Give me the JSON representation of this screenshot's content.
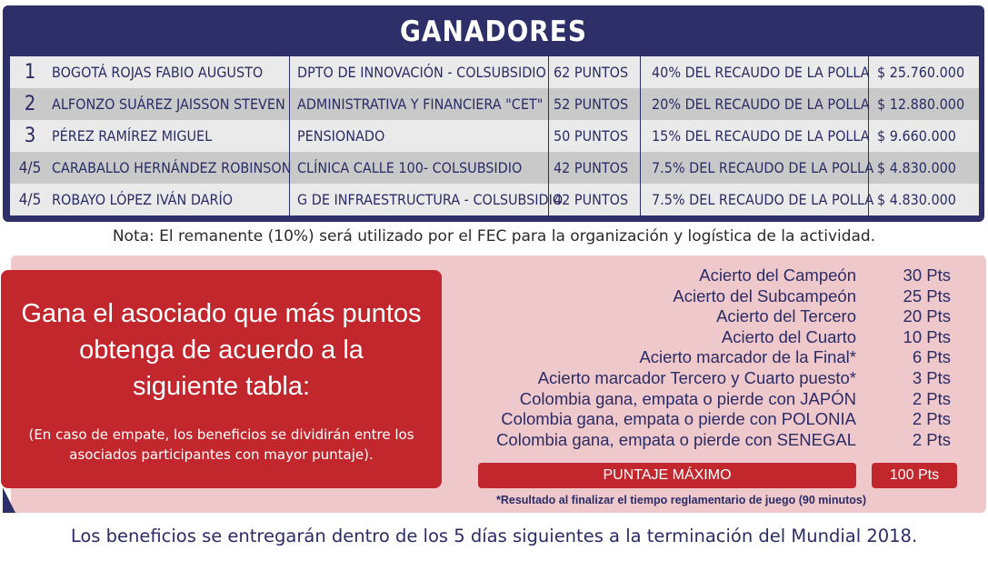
{
  "winners": {
    "title": "GANADORES",
    "rows": [
      {
        "position": "1",
        "name": "BOGOTÁ ROJAS FABIO AUGUSTO",
        "department": "DPTO DE INNOVACIÓN - COLSUBSIDIO",
        "points": "62 PUNTOS",
        "share": "40% DEL RECAUDO DE LA POLLA",
        "amount": "$ 25.760.000"
      },
      {
        "position": "2",
        "name": "ALFONZO SUÁREZ JAISSON STEVEN",
        "department": "ADMINISTRATIVA Y FINANCIERA \"CET\"",
        "points": "52 PUNTOS",
        "share": "20% DEL RECAUDO DE LA POLLA",
        "amount": "$ 12.880.000"
      },
      {
        "position": "3",
        "name": "PÉREZ RAMÍREZ MIGUEL",
        "department": "PENSIONADO",
        "points": "50 PUNTOS",
        "share": "15% DEL RECAUDO DE LA POLLA",
        "amount": "$  9.660.000"
      },
      {
        "position": "4/5",
        "name": "CARABALLO HERNÁNDEZ ROBINSON",
        "department": "CLÍNICA CALLE 100- COLSUBSIDIO",
        "points": "42 PUNTOS",
        "share": "7.5% DEL RECAUDO DE LA POLLA",
        "amount": "$  4.830.000"
      },
      {
        "position": "4/5",
        "name": "ROBAYO LÓPEZ IVÁN DARÍO",
        "department": "G DE INFRAESTRUCTURA - COLSUBSIDIO",
        "points": "42 PUNTOS",
        "share": "7.5% DEL RECAUDO DE LA POLLA",
        "amount": "$  4.830.000"
      }
    ]
  },
  "note": "Nota: El remanente (10%) será utilizado por el FEC para la organización y logística de la actividad.",
  "rules_box": {
    "headline": [
      "Gana el asociado que más puntos",
      "obtenga de acuerdo a la",
      "siguiente tabla:"
    ],
    "tie_note": [
      "(En caso de empate, los beneficios se dividirán entre los",
      "asociados participantes con mayor puntaje)."
    ]
  },
  "scoring": {
    "items": [
      {
        "label": "Acierto del Campeón",
        "points": "30 Pts"
      },
      {
        "label": "Acierto del Subcampeón",
        "points": "25 Pts"
      },
      {
        "label": "Acierto del Tercero",
        "points": "20 Pts"
      },
      {
        "label": "Acierto del Cuarto",
        "points": "10 Pts"
      },
      {
        "label": "Acierto marcador de la Final*",
        "points": "6 Pts"
      },
      {
        "label": "Acierto marcador Tercero y Cuarto puesto*",
        "points": "3 Pts"
      },
      {
        "label": "Colombia gana, empata o pierde con JAPÓN",
        "points": "2 Pts"
      },
      {
        "label": "Colombia gana, empata o pierde con POLONIA",
        "points": "2 Pts"
      },
      {
        "label": "Colombia gana, empata o pierde con SENEGAL",
        "points": "2 Pts"
      }
    ],
    "max_label": "PUNTAJE MÁXIMO",
    "max_value": "100 Pts",
    "footnote": "*Resultado al finalizar el tiempo reglamentario de juego (90 minutos)"
  },
  "footer": "Los beneficios se entregarán dentro de los 5 días siguientes a la terminación del Mundial 2018.",
  "colors": {
    "navy": "#2e2f68",
    "red": "#c1272d",
    "pink": "#eec8cb",
    "row_light": "#eaeaea",
    "row_dark": "#c9c9ca"
  }
}
